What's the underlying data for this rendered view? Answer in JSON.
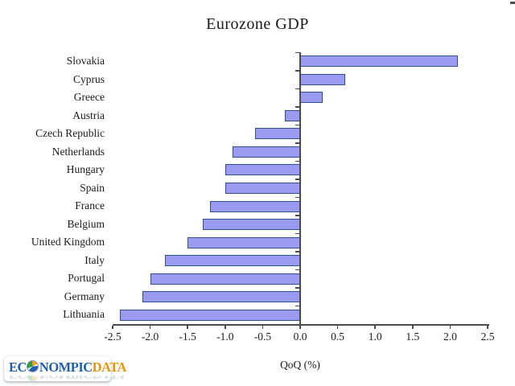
{
  "chart_data": {
    "type": "bar",
    "orientation": "horizontal",
    "title": "Eurozone GDP",
    "xlabel": "QoQ (%)",
    "categories": [
      "Slovakia",
      "Cyprus",
      "Greece",
      "Austria",
      "Czech Republic",
      "Netherlands",
      "Hungary",
      "Spain",
      "France",
      "Belgium",
      "United Kingdom",
      "Italy",
      "Portugal",
      "Germany",
      "Lithuania"
    ],
    "values": [
      2.1,
      0.6,
      0.3,
      -0.2,
      -0.6,
      -0.9,
      -1.0,
      -1.0,
      -1.2,
      -1.3,
      -1.5,
      -1.8,
      -2.0,
      -2.1,
      -2.4
    ],
    "xlim": [
      -2.5,
      2.5
    ],
    "xtick_labels": [
      "-2.5",
      "-2.0",
      "-1.5",
      "-1.0",
      "-0.5",
      "0.0",
      "0.5",
      "1.0",
      "1.5",
      "2.0",
      "2.5"
    ],
    "grid": false,
    "legend": "none",
    "bar_fill": "#9A9AF0",
    "bar_border": "#31508C",
    "axis_color": "#4a4a4a",
    "text_color": "#1a1a1a"
  },
  "logo": {
    "part1": "EC",
    "part2": "NOMPIC",
    "part3": "DATA",
    "globe_icon": "globe-icon",
    "blue": "#1E5FAE",
    "orange": "#E8940A"
  }
}
